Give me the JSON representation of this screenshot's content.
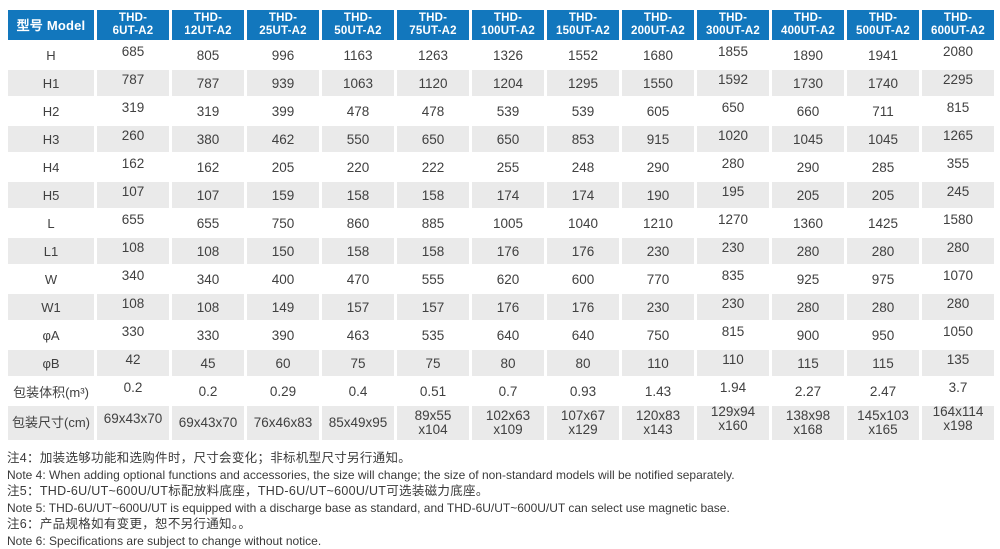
{
  "table": {
    "corner_header": "型号 Model",
    "columns": [
      "THD-\n6UT-A2",
      "THD-\n12UT-A2",
      "THD-\n25UT-A2",
      "THD-\n50UT-A2",
      "THD-\n75UT-A2",
      "THD-\n100UT-A2",
      "THD-\n150UT-A2",
      "THD-\n200UT-A2",
      "THD-\n300UT-A2",
      "THD-\n400UT-A2",
      "THD-\n500UT-A2",
      "THD-\n600UT-A2"
    ],
    "rows": [
      {
        "label": "H",
        "values": [
          "685",
          "805",
          "996",
          "1163",
          "1263",
          "1326",
          "1552",
          "1680",
          "1855",
          "1890",
          "1941",
          "2080"
        ]
      },
      {
        "label": "H1",
        "values": [
          "787",
          "787",
          "939",
          "1063",
          "1120",
          "1204",
          "1295",
          "1550",
          "1592",
          "1730",
          "1740",
          "2295"
        ]
      },
      {
        "label": "H2",
        "values": [
          "319",
          "319",
          "399",
          "478",
          "478",
          "539",
          "539",
          "605",
          "650",
          "660",
          "711",
          "815"
        ]
      },
      {
        "label": "H3",
        "values": [
          "260",
          "380",
          "462",
          "550",
          "650",
          "650",
          "853",
          "915",
          "1020",
          "1045",
          "1045",
          "1265"
        ]
      },
      {
        "label": "H4",
        "values": [
          "162",
          "162",
          "205",
          "220",
          "222",
          "255",
          "248",
          "290",
          "280",
          "290",
          "285",
          "355"
        ]
      },
      {
        "label": "H5",
        "values": [
          "107",
          "107",
          "159",
          "158",
          "158",
          "174",
          "174",
          "190",
          "195",
          "205",
          "205",
          "245"
        ]
      },
      {
        "label": "L",
        "values": [
          "655",
          "655",
          "750",
          "860",
          "885",
          "1005",
          "1040",
          "1210",
          "1270",
          "1360",
          "1425",
          "1580"
        ]
      },
      {
        "label": "L1",
        "values": [
          "108",
          "108",
          "150",
          "158",
          "158",
          "176",
          "176",
          "230",
          "230",
          "280",
          "280",
          "280"
        ]
      },
      {
        "label": "W",
        "values": [
          "340",
          "340",
          "400",
          "470",
          "555",
          "620",
          "600",
          "770",
          "835",
          "925",
          "975",
          "1070"
        ]
      },
      {
        "label": "W1",
        "values": [
          "108",
          "108",
          "149",
          "157",
          "157",
          "176",
          "176",
          "230",
          "230",
          "280",
          "280",
          "280"
        ]
      },
      {
        "label": "φA",
        "values": [
          "330",
          "330",
          "390",
          "463",
          "535",
          "640",
          "640",
          "750",
          "815",
          "900",
          "950",
          "1050"
        ]
      },
      {
        "label": "φB",
        "values": [
          "42",
          "45",
          "60",
          "75",
          "75",
          "80",
          "80",
          "110",
          "110",
          "115",
          "115",
          "135"
        ]
      },
      {
        "label": "包装体积(m³)",
        "values": [
          "0.2",
          "0.2",
          "0.29",
          "0.4",
          "0.51",
          "0.7",
          "0.93",
          "1.43",
          "1.94",
          "2.27",
          "2.47",
          "3.7"
        ]
      },
      {
        "label": "包装尺寸(cm)",
        "values": [
          "69x43x70",
          "69x43x70",
          "76x46x83",
          "85x49x95",
          "89x55\nx104",
          "102x63\nx109",
          "107x67\nx129",
          "120x83\nx143",
          "129x94\nx160",
          "138x98\nx168",
          "145x103\nx165",
          "164x114\nx198"
        ]
      }
    ]
  },
  "notes": [
    {
      "zh": "注4：加装选够功能和选购件时，尺寸会变化；非标机型尺寸另行通知。",
      "en": "Note 4: When adding optional functions and accessories, the size will change; the size of non-standard models will be notified separately."
    },
    {
      "zh": "注5：THD-6U/UT~600U/UT标配放料底座，THD-6U/UT~600U/UT可选装磁力底座。",
      "en": "Note 5: THD-6U/UT~600U/UT is equipped with a discharge base as standard, and THD-6U/UT~600U/UT can select use magnetic base."
    },
    {
      "zh": "注6：产品规格如有变更，恕不另行通知。。",
      "en": "Note 6: Specifications are subject to change without notice."
    }
  ],
  "colors": {
    "header_bg": "#1277bd",
    "row_alt_bg": "#eaeaea",
    "header_text": "#ffffff",
    "body_text": "#404040"
  }
}
